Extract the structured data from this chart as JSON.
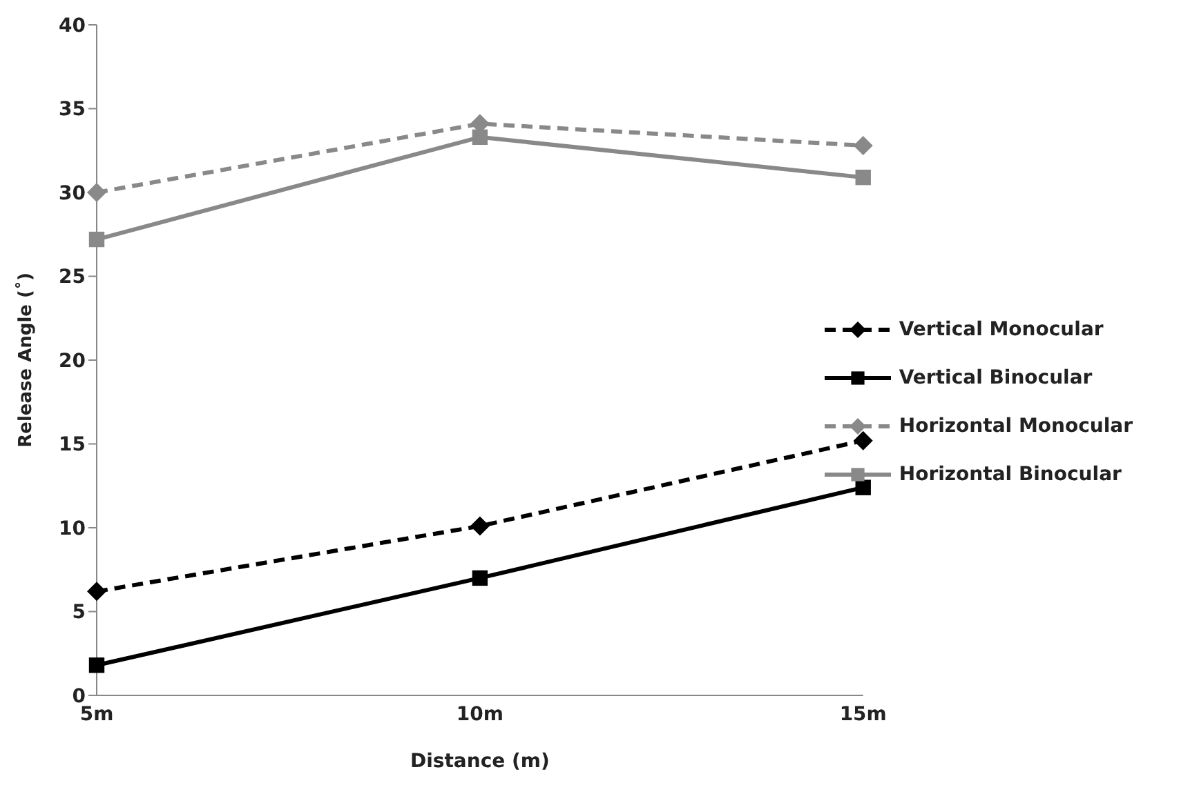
{
  "chart_data": {
    "type": "line",
    "xlabel": "Distance (m)",
    "ylabel": "Release Angle (˚)",
    "categories": [
      "5m",
      "10m",
      "15m"
    ],
    "ylim": [
      0,
      40
    ],
    "yticks": [
      0,
      5,
      10,
      15,
      20,
      25,
      30,
      35,
      40
    ],
    "grid": false,
    "legend": "right",
    "series": [
      {
        "name": "Vertical Monocular",
        "color": "#000000",
        "values": [
          6.2,
          10.1,
          15.2
        ],
        "marker": "diamond",
        "line_style": "dashed"
      },
      {
        "name": "Vertical Binocular",
        "color": "#000000",
        "values": [
          1.8,
          7.0,
          12.4
        ],
        "marker": "square",
        "line_style": "solid"
      },
      {
        "name": "Horizontal Monocular",
        "color": "#898989",
        "values": [
          30.0,
          34.1,
          32.8
        ],
        "marker": "diamond",
        "line_style": "dashed"
      },
      {
        "name": "Horizontal Binocular",
        "color": "#898989",
        "values": [
          27.2,
          33.3,
          30.9
        ],
        "marker": "square",
        "line_style": "solid"
      }
    ]
  }
}
